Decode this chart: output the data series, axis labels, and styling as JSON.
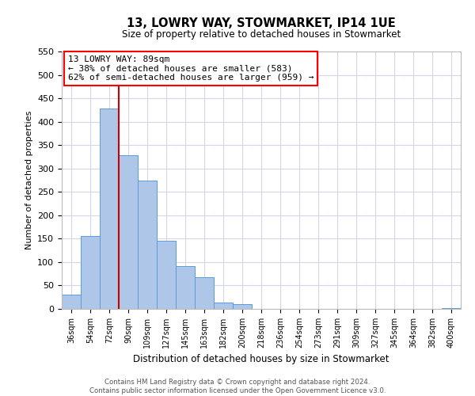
{
  "title": "13, LOWRY WAY, STOWMARKET, IP14 1UE",
  "subtitle": "Size of property relative to detached houses in Stowmarket",
  "xlabel": "Distribution of detached houses by size in Stowmarket",
  "ylabel": "Number of detached properties",
  "bar_labels": [
    "36sqm",
    "54sqm",
    "72sqm",
    "90sqm",
    "109sqm",
    "127sqm",
    "145sqm",
    "163sqm",
    "182sqm",
    "200sqm",
    "218sqm",
    "236sqm",
    "254sqm",
    "273sqm",
    "291sqm",
    "309sqm",
    "327sqm",
    "345sqm",
    "364sqm",
    "382sqm",
    "400sqm"
  ],
  "bar_values": [
    30,
    155,
    428,
    328,
    275,
    145,
    92,
    68,
    13,
    10,
    0,
    0,
    0,
    0,
    0,
    0,
    0,
    0,
    0,
    0,
    2
  ],
  "bar_color": "#aec6e8",
  "bar_edge_color": "#5b9bd5",
  "vline_x": 3,
  "vline_color": "#cc0000",
  "ylim": [
    0,
    550
  ],
  "yticks": [
    0,
    50,
    100,
    150,
    200,
    250,
    300,
    350,
    400,
    450,
    500,
    550
  ],
  "annotation_line1": "13 LOWRY WAY: 89sqm",
  "annotation_line2": "← 38% of detached houses are smaller (583)",
  "annotation_line3": "62% of semi-detached houses are larger (959) →",
  "footer_line1": "Contains HM Land Registry data © Crown copyright and database right 2024.",
  "footer_line2": "Contains public sector information licensed under the Open Government Licence v3.0.",
  "bg_color": "#ffffff",
  "grid_color": "#d0d8e8"
}
